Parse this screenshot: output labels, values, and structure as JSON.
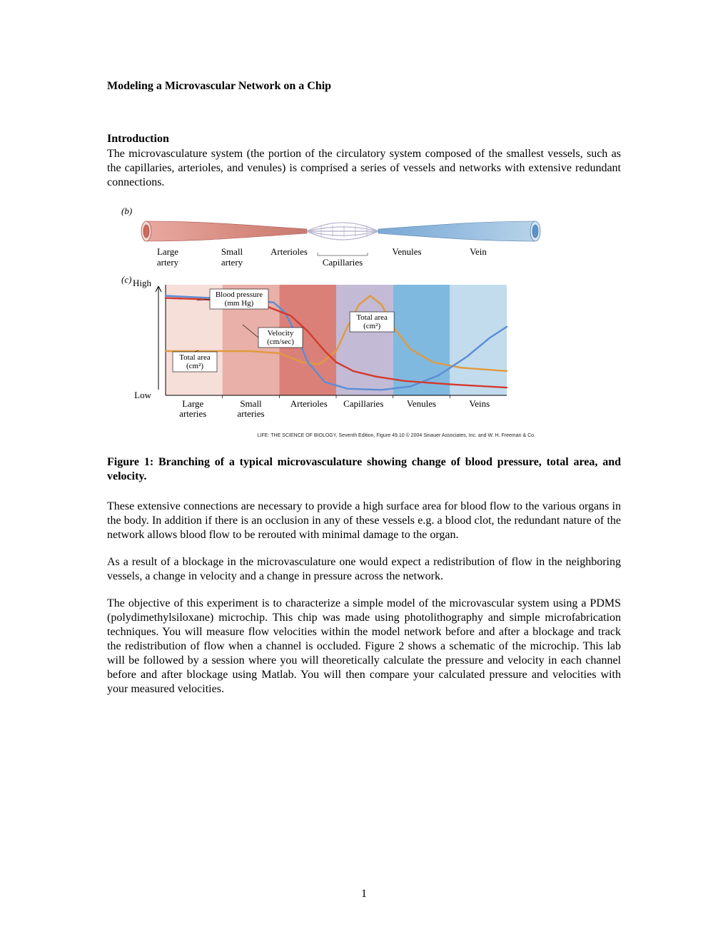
{
  "title": "Modeling a Microvascular Network on a Chip",
  "intro_head": "Introduction",
  "intro_body": "The microvasculature system (the portion of the circulatory system composed of the smallest vessels, such as the capillaries, arterioles, and venules) is comprised a series of vessels and networks with extensive redundant connections.",
  "fig1_caption": "Figure 1: Branching of a typical microvasculature showing change of blood pressure, total area, and velocity.",
  "para2": "These extensive connections are necessary to provide a high surface area for blood flow to the various organs in the body. In addition if there is an occlusion in any of these vessels e.g. a blood clot, the redundant nature of the network allows blood flow to be rerouted with minimal damage to the organ.",
  "para3": "As a result of a blockage in the microvasculature one would expect a redistribution of flow in the neighboring vessels, a change in velocity and a change in pressure across the network.",
  "para4": "The objective of this experiment is to characterize a simple model of the microvascular system using a PDMS (polydimethylsiloxane) microchip. This chip was made using photolithography and simple microfabrication techniques. You will measure flow velocities within the model network before and after a blockage and track the redistribution of flow when a channel is occluded. Figure 2 shows a schematic of the microchip. This lab will be followed by a session where you will theoretically calculate the pressure and velocity in each channel before and after blockage using Matlab. You will then compare your calculated pressure and velocities with your measured velocities.",
  "pagenum": "1",
  "figure": {
    "type": "diagram+line",
    "panel_b": "(b)",
    "panel_c": "(c)",
    "vessel_labels": [
      "Large artery",
      "Small artery",
      "Arterioles",
      "Capillaries",
      "Venules",
      "Vein"
    ],
    "graph_xlabels": [
      "Large arteries",
      "Small arteries",
      "Arterioles",
      "Capillaries",
      "Venules",
      "Veins"
    ],
    "y_high": "High",
    "y_low": "Low",
    "legend_bp": "Blood pressure",
    "legend_bp_unit": "(mm Hg)",
    "legend_vel": "Velocity",
    "legend_vel_unit": "(cm/sec)",
    "legend_area": "Total area",
    "legend_area_unit": "(cm²)",
    "graph_area_label": "Total area",
    "graph_area_unit": "(cm²)",
    "region_colors": [
      "#f6ded9",
      "#e8b0a9",
      "#da8079",
      "#c3bbd5",
      "#80b9df",
      "#c2dced"
    ],
    "line_colors": {
      "blood_pressure": "#d43a2f",
      "velocity": "#5b8dd6",
      "total_area": "#e09a3f"
    },
    "vessel_artery_fill": "#e8a99f",
    "vessel_artery_inner": "#d06a5e",
    "vessel_vein_fill": "#9fc6e6",
    "vessel_vein_inner": "#5a93c9",
    "vessel_cap_stroke": "#b8b5cf",
    "credit_text": "LIFE: THE SCIENCE OF BIOLOGY, Seventh Edition, Figure 49.10 © 2004 Sinauer Associates, Inc. and W. H. Freeman & Co.",
    "graph": {
      "xlim": [
        0,
        6
      ],
      "ylim": [
        0,
        1
      ],
      "region_bounds": [
        0,
        1,
        2,
        3,
        4,
        5,
        6
      ],
      "blood_pressure": [
        [
          0.0,
          0.88
        ],
        [
          0.6,
          0.87
        ],
        [
          1.2,
          0.85
        ],
        [
          1.8,
          0.8
        ],
        [
          2.2,
          0.72
        ],
        [
          2.5,
          0.58
        ],
        [
          2.8,
          0.4
        ],
        [
          3.0,
          0.3
        ],
        [
          3.3,
          0.22
        ],
        [
          3.7,
          0.17
        ],
        [
          4.2,
          0.13
        ],
        [
          5.0,
          0.1
        ],
        [
          6.0,
          0.07
        ]
      ],
      "velocity": [
        [
          0.0,
          0.9
        ],
        [
          0.8,
          0.88
        ],
        [
          1.5,
          0.86
        ],
        [
          1.9,
          0.84
        ],
        [
          2.1,
          0.75
        ],
        [
          2.3,
          0.55
        ],
        [
          2.5,
          0.3
        ],
        [
          2.8,
          0.12
        ],
        [
          3.2,
          0.06
        ],
        [
          3.8,
          0.05
        ],
        [
          4.3,
          0.08
        ],
        [
          4.8,
          0.18
        ],
        [
          5.3,
          0.35
        ],
        [
          5.7,
          0.52
        ],
        [
          6.0,
          0.62
        ]
      ],
      "total_area": [
        [
          0.0,
          0.4
        ],
        [
          0.8,
          0.4
        ],
        [
          1.5,
          0.4
        ],
        [
          2.0,
          0.38
        ],
        [
          2.4,
          0.3
        ],
        [
          2.7,
          0.28
        ],
        [
          3.0,
          0.4
        ],
        [
          3.2,
          0.62
        ],
        [
          3.4,
          0.82
        ],
        [
          3.6,
          0.9
        ],
        [
          3.8,
          0.82
        ],
        [
          4.0,
          0.62
        ],
        [
          4.3,
          0.42
        ],
        [
          4.7,
          0.3
        ],
        [
          5.2,
          0.25
        ],
        [
          6.0,
          0.22
        ]
      ]
    }
  }
}
